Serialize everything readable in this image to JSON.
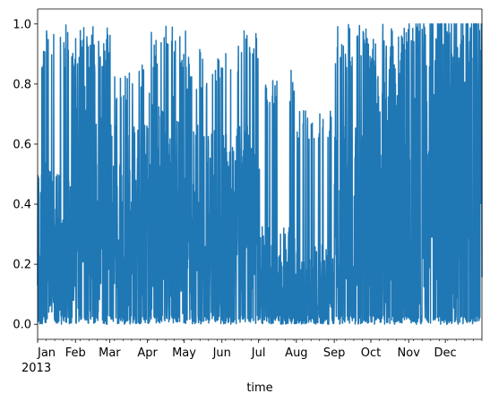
{
  "chart_data": {
    "type": "line",
    "title": "",
    "xlabel": "time",
    "ylabel": "",
    "ylim": [
      -0.05,
      1.05
    ],
    "xlim": [
      "2013-01-01",
      "2013-12-31"
    ],
    "grid": false,
    "legend": "none",
    "x_tick_labels": [
      {
        "date": "2013-01-01",
        "label": "Jan"
      },
      {
        "date": "2013-02-01",
        "label": "Feb"
      },
      {
        "date": "2013-03-01",
        "label": "Mar"
      },
      {
        "date": "2013-04-01",
        "label": "Apr"
      },
      {
        "date": "2013-05-01",
        "label": "May"
      },
      {
        "date": "2013-06-01",
        "label": "Jun"
      },
      {
        "date": "2013-07-01",
        "label": "Jul"
      },
      {
        "date": "2013-08-01",
        "label": "Aug"
      },
      {
        "date": "2013-09-01",
        "label": "Sep"
      },
      {
        "date": "2013-10-01",
        "label": "Oct"
      },
      {
        "date": "2013-11-01",
        "label": "Nov"
      },
      {
        "date": "2013-12-01",
        "label": "Dec"
      }
    ],
    "x_year_label": "2013",
    "y_ticks": [
      0.0,
      0.2,
      0.4,
      0.6,
      0.8,
      1.0
    ],
    "y_tick_labels": [
      "0.0",
      "0.2",
      "0.4",
      "0.6",
      "0.8",
      "1.0"
    ],
    "series_color": "#1f77b4",
    "monthly_envelope": [
      {
        "month": "Jan",
        "low": 0.0,
        "high": 1.0,
        "typical": 0.25
      },
      {
        "month": "Feb",
        "low": 0.0,
        "high": 1.0,
        "typical": 0.45
      },
      {
        "month": "Mar",
        "low": 0.0,
        "high": 0.87,
        "typical": 0.3
      },
      {
        "month": "Apr",
        "low": 0.0,
        "high": 1.0,
        "typical": 0.35
      },
      {
        "month": "May",
        "low": 0.0,
        "high": 0.92,
        "typical": 0.3
      },
      {
        "month": "Jun",
        "low": 0.0,
        "high": 0.98,
        "typical": 0.3
      },
      {
        "month": "Jul",
        "low": 0.0,
        "high": 0.85,
        "typical": 0.15
      },
      {
        "month": "Aug",
        "low": 0.0,
        "high": 0.72,
        "typical": 0.12
      },
      {
        "month": "Sep",
        "low": 0.0,
        "high": 1.0,
        "typical": 0.3
      },
      {
        "month": "Oct",
        "low": 0.0,
        "high": 1.0,
        "typical": 0.45
      },
      {
        "month": "Nov",
        "low": 0.0,
        "high": 1.0,
        "typical": 0.5
      },
      {
        "month": "Dec",
        "low": 0.0,
        "high": 1.0,
        "typical": 0.55
      }
    ]
  }
}
